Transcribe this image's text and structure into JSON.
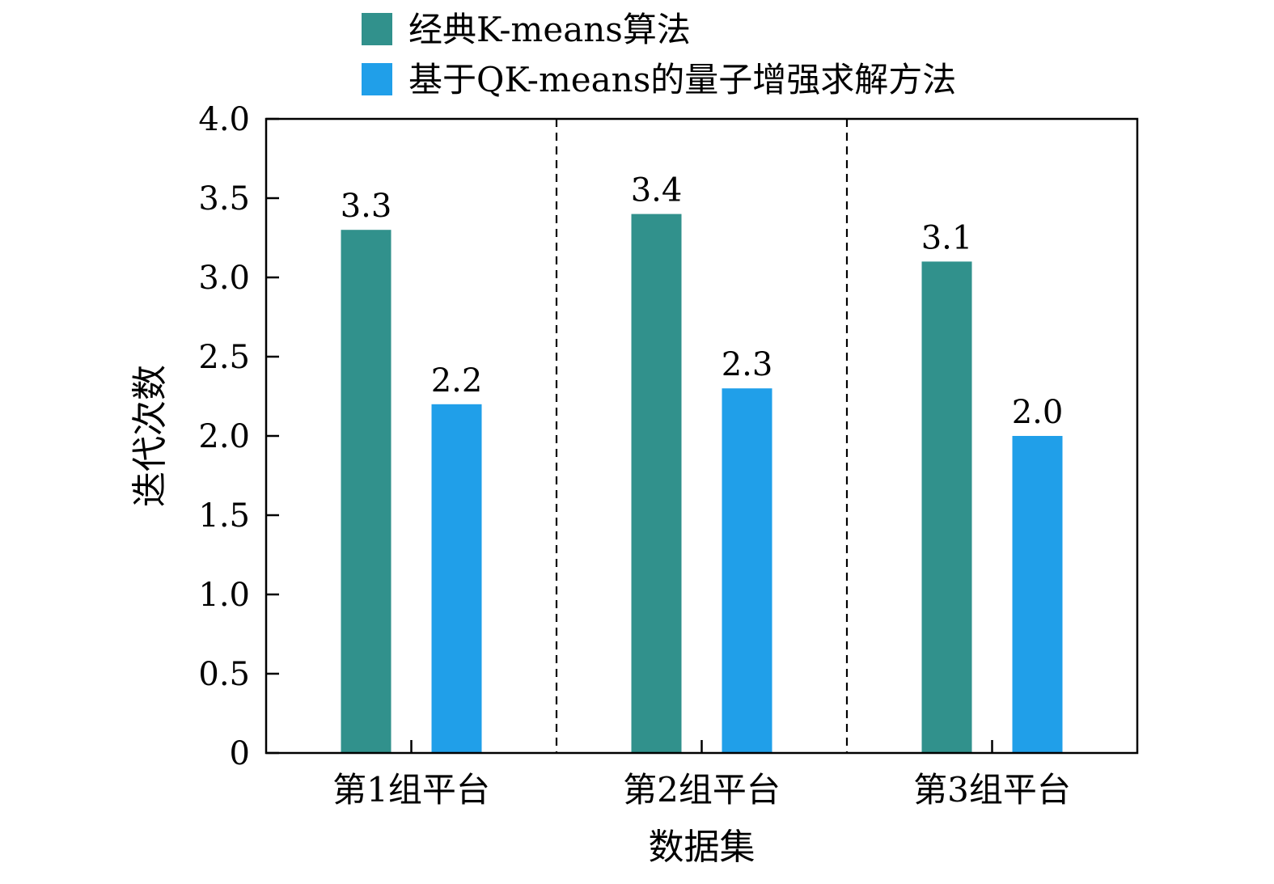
{
  "chart_data": {
    "type": "bar",
    "title": "",
    "xlabel": "数据集",
    "ylabel": "迭代次数",
    "categories": [
      "第1组平台",
      "第2组平台",
      "第3组平台"
    ],
    "series": [
      {
        "name": "经典K-means算法",
        "values": [
          3.3,
          3.4,
          3.1
        ],
        "color": "#31918c",
        "labels": [
          "3.3",
          "3.4",
          "3.1"
        ]
      },
      {
        "name": "基于QK-means的量子增强求解方法",
        "values": [
          2.2,
          2.3,
          2.0
        ],
        "color": "#209fe9",
        "labels": [
          "2.2",
          "2.3",
          "2.0"
        ]
      }
    ],
    "ylim": [
      0,
      4.0
    ],
    "yticks": [
      0,
      0.5,
      1.0,
      1.5,
      2.0,
      2.5,
      3.0,
      3.5,
      4.0
    ],
    "ytick_labels": [
      "0",
      "0.5",
      "1.0",
      "1.5",
      "2.0",
      "2.5",
      "3.0",
      "3.5",
      "4.0"
    ],
    "grid": false,
    "group_separators": "dashed",
    "legend_position": "top"
  }
}
